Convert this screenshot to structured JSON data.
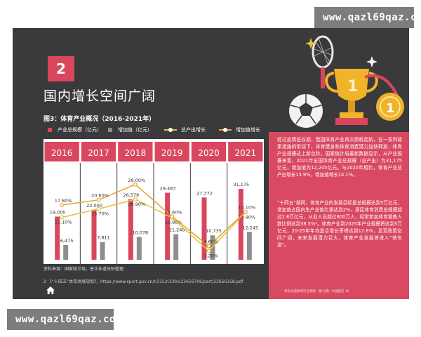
{
  "watermark": {
    "top": "www.qazl69qaz.com",
    "bottom": "www.qazl69qaz.com"
  },
  "section": {
    "number": "2",
    "title": "国内增长空间广阔"
  },
  "figure_caption": "图3：体育产业概况（2016-2021年）",
  "legend": {
    "total_output": "产业总规模（亿元）",
    "value_added": "增加值（亿元）",
    "total_growth": "总产出增长",
    "added_growth": "增加值增长"
  },
  "source": "资料来源：国家统计局，普华永道分析整理",
  "footnote": "2 《“十四五”体育发展规划》，https://www.sport.gov.cn/n315/n330/c23656706/part/23656158.pdf",
  "panel": {
    "paragraph1": "经过疫情低谷期，我国体育产业再次扬帆起航，在一系列政策措施的带动下，体育健身和体育消费潜力加快释放，体育产业规模达上新台阶。国家统计局最新数据显示，从产业规模来看，2021年全国体育产业总规模（总产出）为31,175亿元，增加值为12,245亿元。与2020年相比，体育产业总产出增长13.9%，增加值增长14.1%。",
    "paragraph2": "“十四五”期间，体育产业的发展目标是总规模达到5万亿元，增加值占国内生产总值比重达到2%，居民体育消费总规模超过2.8万亿元，从业人员超过800万人，经常参加体育锻炼人数比例达到38.5%²。体育产业到2025年产业规模将达到5万亿元，20-25年年均复合增长率将达到12.8%，显现政策空间广阔，未来发展潜力巨大，体育产业发展将进入“快车道”。",
    "footer": "普华永道体育行业调研（第七期）中国报告   15"
  },
  "colors": {
    "page_bg": "#3a3a3c",
    "accent": "#d9475e",
    "value_added_bar": "#8e8e8e",
    "total_growth_line": "#e9c23f",
    "added_growth_line": "#e8a534",
    "panel": "#d94a62"
  },
  "chart_data": {
    "type": "bar",
    "categories": [
      "2016",
      "2017",
      "2018",
      "2019",
      "2020",
      "2021"
    ],
    "series": [
      {
        "name": "产业总规模（亿元）",
        "type": "bar",
        "values": [
          19000,
          22000,
          26579,
          29483,
          27372,
          31175
        ],
        "labels": [
          "19,000",
          "22,000",
          "26,579",
          "29,483",
          "27,372",
          "31,175"
        ]
      },
      {
        "name": "增加值（亿元）",
        "type": "bar",
        "values": [
          6475,
          7811,
          10078,
          11248,
          10735,
          12245
        ],
        "labels": [
          "6,475",
          "7,811",
          "10,078",
          "11,248",
          "10,735",
          "12,245"
        ]
      },
      {
        "name": "总产出增长",
        "type": "line",
        "values": [
          11.1,
          15.7,
          20.9,
          10.9,
          -7.2,
          13.9
        ],
        "labels": [
          "11.10%",
          "15.70%",
          "20.90%",
          "10.90%",
          "-7.20%",
          "13.90%"
        ]
      },
      {
        "name": "增加值增长",
        "type": "line",
        "values": [
          17.8,
          20.6,
          29.0,
          11.6,
          -4.6,
          14.1
        ],
        "labels": [
          "17.80%",
          "20.60%",
          "29.00%",
          "11.60%",
          "-4.60%",
          "14.10%"
        ]
      }
    ],
    "bar_ylim": [
      0,
      42000
    ],
    "growth_ylim": [
      -12,
      40
    ],
    "legend_position": "top"
  }
}
